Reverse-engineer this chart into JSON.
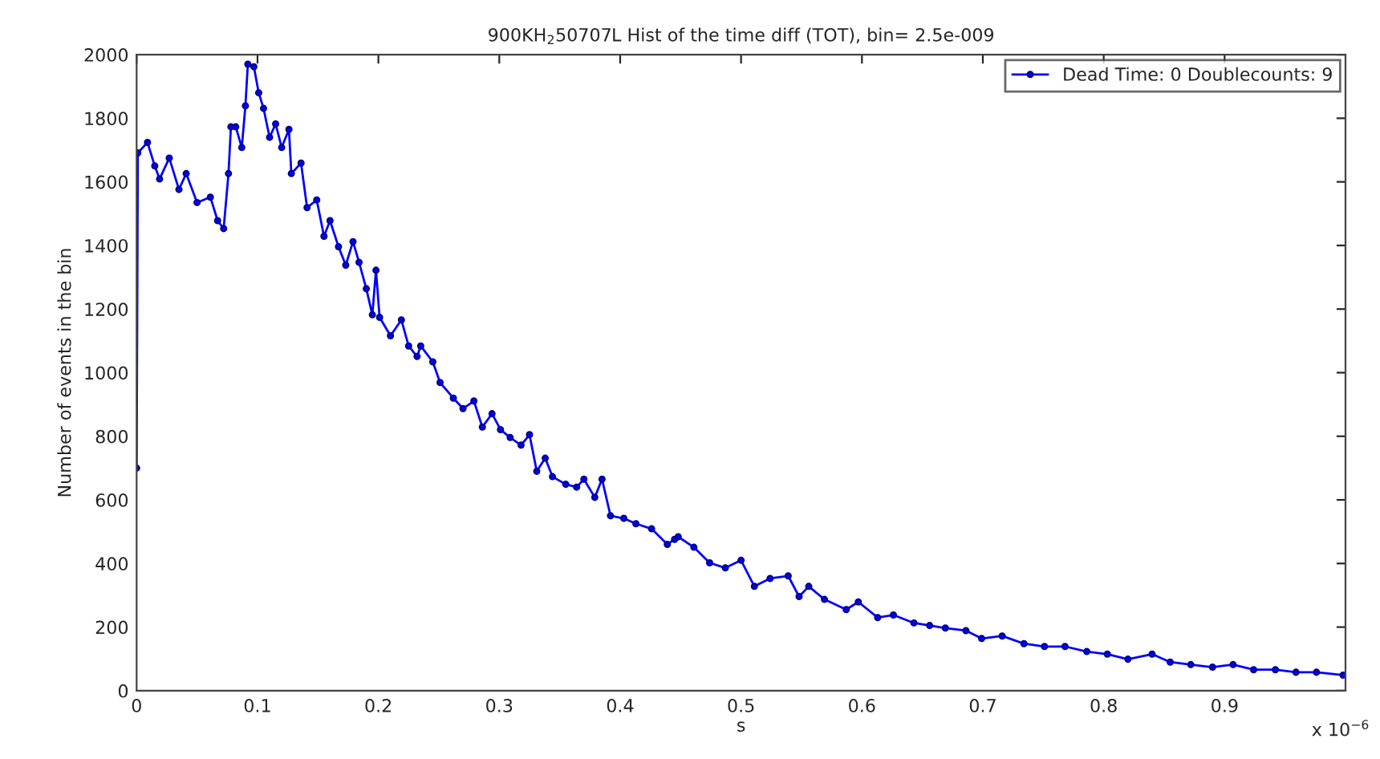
{
  "chart_data": {
    "type": "line",
    "title": "900KH$_{2}$50707L Hist of the time diff (TOT), bin= 2.5e-009",
    "xlabel": "s",
    "ylabel": "Number of events in the bin",
    "annotations": [
      "x 10$^{−6}$"
    ],
    "xlim": [
      0,
      1
    ],
    "xticks": [
      0,
      0.1,
      0.2,
      0.3,
      0.4,
      0.5,
      0.6,
      0.7,
      0.8,
      0.9
    ],
    "ylim": [
      0,
      2000
    ],
    "yticks": [
      0,
      200,
      400,
      600,
      800,
      1000,
      1200,
      1400,
      1600,
      1800,
      2000
    ],
    "grid": false,
    "legend": "top right",
    "marker": "circle",
    "line_style": "solid",
    "series": [
      {
        "name": "Dead Time: 0 Doublecounts: 9",
        "color": "#0000ff",
        "x": [
          0,
          0.001,
          0.009,
          0.015,
          0.019,
          0.027,
          0.035,
          0.041,
          0.05,
          0.061,
          0.067,
          0.072,
          0.076,
          0.078,
          0.082,
          0.087,
          0.09,
          0.092,
          0.097,
          0.101,
          0.105,
          0.11,
          0.115,
          0.12,
          0.126,
          0.128,
          0.136,
          0.141,
          0.149,
          0.155,
          0.16,
          0.167,
          0.173,
          0.179,
          0.184,
          0.19,
          0.195,
          0.198,
          0.201,
          0.21,
          0.219,
          0.225,
          0.232,
          0.235,
          0.245,
          0.251,
          0.262,
          0.27,
          0.279,
          0.286,
          0.294,
          0.301,
          0.309,
          0.318,
          0.325,
          0.331,
          0.338,
          0.344,
          0.355,
          0.364,
          0.37,
          0.379,
          0.385,
          0.392,
          0.403,
          0.413,
          0.426,
          0.439,
          0.445,
          0.448,
          0.461,
          0.474,
          0.487,
          0.5,
          0.511,
          0.524,
          0.539,
          0.548,
          0.556,
          0.569,
          0.587,
          0.597,
          0.613,
          0.626,
          0.643,
          0.656,
          0.669,
          0.686,
          0.699,
          0.716,
          0.734,
          0.751,
          0.768,
          0.786,
          0.803,
          0.82,
          0.84,
          0.855,
          0.872,
          0.89,
          0.907,
          0.924,
          0.942,
          0.959,
          0.976,
          0.998
        ],
        "values": [
          700,
          1691,
          1724,
          1650,
          1609,
          1675,
          1576,
          1626,
          1535,
          1552,
          1478,
          1453,
          1626,
          1773,
          1773,
          1708,
          1839,
          1970,
          1962,
          1880,
          1831,
          1740,
          1782,
          1708,
          1765,
          1626,
          1659,
          1519,
          1543,
          1429,
          1478,
          1396,
          1338,
          1412,
          1347,
          1264,
          1182,
          1322,
          1174,
          1116,
          1166,
          1084,
          1051,
          1084,
          1034,
          969,
          920,
          887,
          911,
          829,
          871,
          821,
          796,
          772,
          805,
          690,
          731,
          673,
          649,
          640,
          665,
          608,
          665,
          550,
          542,
          525,
          509,
          460,
          476,
          484,
          451,
          402,
          386,
          410,
          328,
          353,
          361,
          296,
          328,
          287,
          255,
          279,
          230,
          238,
          213,
          205,
          197,
          189,
          164,
          172,
          148,
          139,
          139,
          123,
          115,
          99,
          115,
          90,
          82,
          74,
          82,
          66,
          66,
          58,
          58,
          49
        ]
      }
    ]
  }
}
